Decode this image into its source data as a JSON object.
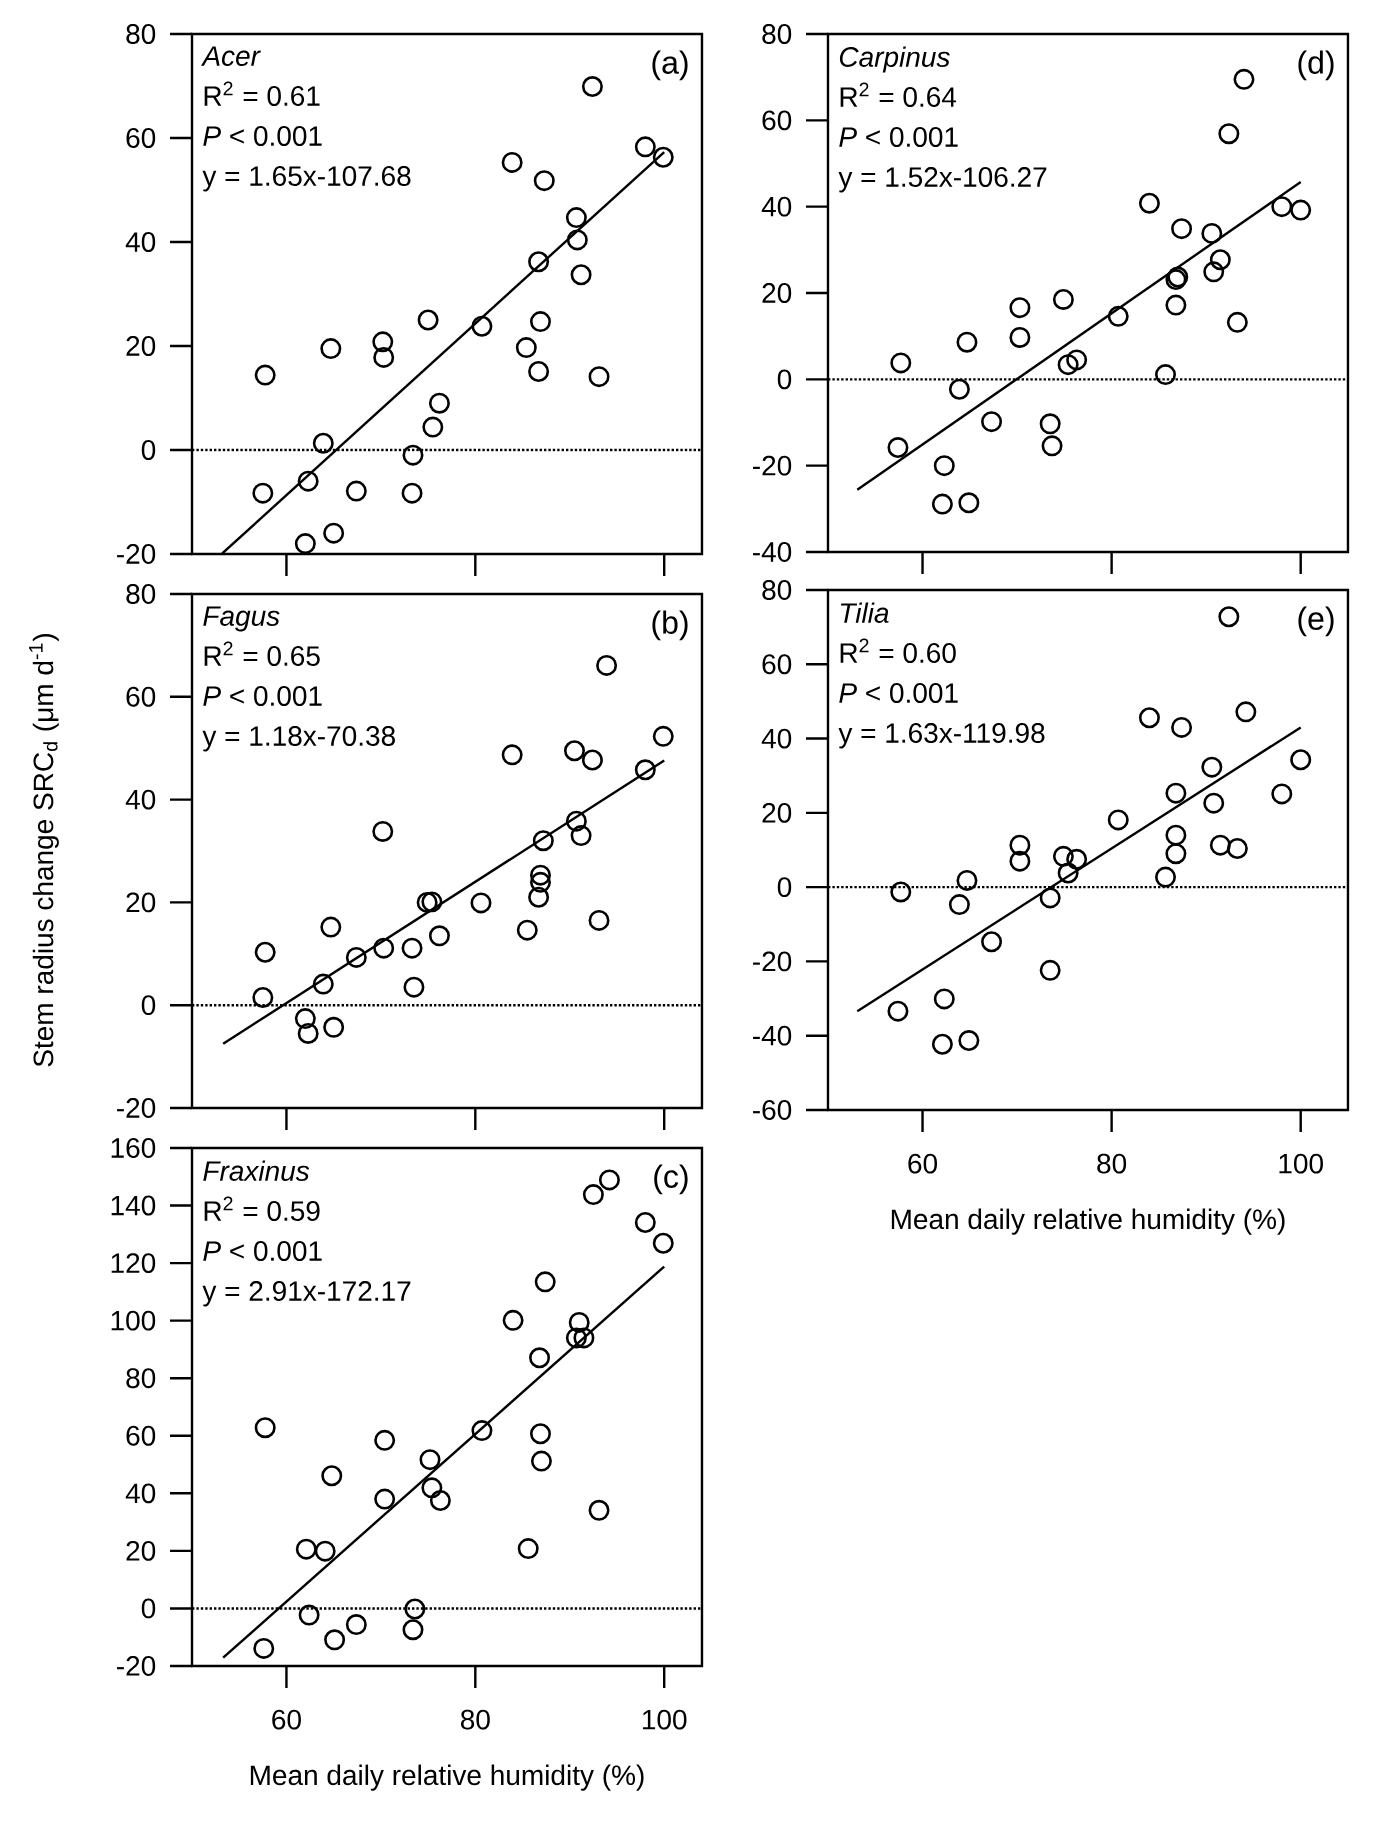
{
  "chart_data": [
    {
      "type": "scatter",
      "xlim": [
        50,
        104
      ],
      "ylim": [
        -20,
        80
      ],
      "xticks": [
        60,
        80,
        100
      ],
      "yticks": [
        -20,
        0,
        20,
        40,
        60,
        80
      ],
      "tick_labels": "y",
      "annotations": [
        "Acer",
        "R$^{2}$ = 0.61",
        "*P* < 0.001",
        "y = 1.65x-107.68",
        "(a)"
      ],
      "ref_lines": [
        {
          "axis": "y",
          "value": 0,
          "line_style": "dotted",
          "color": "#000000"
        }
      ],
      "series": [
        {
          "marker": "circle",
          "color": "#000000",
          "x": [
            57.75,
            57.5,
            62.3,
            63.9,
            64.7,
            62.0,
            65.0,
            67.4,
            70.2,
            70.3,
            73.4,
            73.3,
            75.0,
            75.5,
            76.2,
            80.7,
            83.9,
            85.4,
            86.7,
            86.9,
            86.7,
            87.3,
            90.7,
            90.8,
            91.2,
            92.4,
            93.1,
            98.0,
            99.9
          ],
          "values": [
            14.4,
            -8.3,
            -6.0,
            1.3,
            19.5,
            -18.0,
            -16.0,
            -7.9,
            20.8,
            17.8,
            -1.0,
            -8.3,
            25.0,
            4.4,
            9.0,
            23.8,
            55.3,
            19.7,
            36.2,
            24.7,
            15.1,
            51.8,
            44.7,
            40.4,
            33.7,
            69.9,
            14.1,
            58.3,
            56.3
          ]
        },
        {
          "type": "line",
          "color": "#000000",
          "x": [
            53.2,
            100
          ],
          "values": [
            -19.9,
            57.3
          ]
        }
      ]
    },
    {
      "type": "scatter",
      "xlim": [
        50,
        104
      ],
      "ylim": [
        -20,
        80
      ],
      "xticks": [
        60,
        80,
        100
      ],
      "yticks": [
        -20,
        0,
        20,
        40,
        60,
        80
      ],
      "tick_labels": "y",
      "ylabel": "Stem radius change SRC$_{d}$ (μm d$^{-1}$)",
      "annotations": [
        "Fagus",
        "R$^{2}$ = 0.65",
        "*P* < 0.001",
        "y = 1.18x-70.38",
        "(b)"
      ],
      "ref_lines": [
        {
          "axis": "y",
          "value": 0,
          "line_style": "dotted",
          "color": "#000000"
        }
      ],
      "series": [
        {
          "marker": "circle",
          "color": "#000000",
          "x": [
            57.75,
            57.5,
            64.7,
            63.9,
            62.0,
            62.3,
            65.0,
            67.4,
            70.2,
            70.3,
            73.3,
            73.5,
            74.9,
            75.4,
            76.2,
            80.6,
            83.9,
            85.5,
            86.7,
            86.9,
            86.9,
            87.2,
            90.5,
            90.7,
            91.2,
            92.4,
            93.1,
            93.9,
            98.0,
            99.9
          ],
          "values": [
            10.3,
            1.5,
            15.2,
            4.1,
            -2.6,
            -5.5,
            -4.3,
            9.3,
            33.8,
            11.1,
            11.1,
            3.5,
            20.0,
            20.1,
            13.5,
            19.9,
            48.7,
            14.6,
            21.0,
            23.9,
            25.3,
            32.0,
            49.5,
            35.8,
            33.0,
            47.7,
            16.5,
            66.1,
            45.8,
            52.3
          ]
        },
        {
          "type": "line",
          "color": "#000000",
          "x": [
            53.3,
            100
          ],
          "values": [
            -7.5,
            47.6
          ]
        }
      ]
    },
    {
      "type": "scatter",
      "xlim": [
        50,
        104
      ],
      "ylim": [
        -20,
        160
      ],
      "xticks": [
        60,
        80,
        100
      ],
      "yticks": [
        -20,
        0,
        20,
        40,
        60,
        80,
        100,
        120,
        140,
        160
      ],
      "xlabel": "Mean daily relative humidity (%)",
      "annotations": [
        "Fraxinus",
        "R$^{2}$ = 0.59",
        "*P* < 0.001",
        "y = 2.91x-172.17",
        "(c)"
      ],
      "ref_lines": [
        {
          "axis": "y",
          "value": 0,
          "line_style": "dotted",
          "color": "#000000"
        }
      ],
      "series": [
        {
          "marker": "circle",
          "color": "#000000",
          "x": [
            57.75,
            57.6,
            62.1,
            64.1,
            64.8,
            62.4,
            65.1,
            67.4,
            70.4,
            70.4,
            73.6,
            73.4,
            75.2,
            75.4,
            76.3,
            80.7,
            84.0,
            85.6,
            86.8,
            86.9,
            87.0,
            87.4,
            91.0,
            90.7,
            91.5,
            93.1,
            92.5,
            94.2,
            98.0,
            99.9
          ],
          "values": [
            62.8,
            -13.9,
            20.6,
            19.9,
            46.1,
            -2.3,
            -10.9,
            -5.6,
            58.4,
            38.0,
            -0.2,
            -7.4,
            51.7,
            41.9,
            37.5,
            61.8,
            100.1,
            20.8,
            87.1,
            60.7,
            51.2,
            113.5,
            99.4,
            94.0,
            94.0,
            34.1,
            143.8,
            148.9,
            134.1,
            126.9
          ]
        },
        {
          "type": "line",
          "color": "#000000",
          "x": [
            53.3,
            100
          ],
          "values": [
            -17.1,
            118.8
          ]
        }
      ]
    },
    {
      "type": "scatter",
      "xlim": [
        50,
        105
      ],
      "ylim": [
        -40,
        80
      ],
      "xticks": [
        60,
        80,
        100
      ],
      "yticks": [
        -40,
        -20,
        0,
        20,
        40,
        60,
        80
      ],
      "tick_labels": "y",
      "annotations": [
        "Carpinus",
        "R$^{2}$ = 0.64",
        "*P* < 0.001",
        "y = 1.52x-106.27",
        "(d)"
      ],
      "ref_lines": [
        {
          "axis": "y",
          "value": 0,
          "line_style": "dotted",
          "color": "#000000"
        }
      ],
      "series": [
        {
          "marker": "circle",
          "color": "#000000",
          "x": [
            57.7,
            57.4,
            62.3,
            62.1,
            64.9,
            64.7,
            63.9,
            67.3,
            70.3,
            70.3,
            74.9,
            73.5,
            73.7,
            75.4,
            76.3,
            80.7,
            84.0,
            85.7,
            86.8,
            86.8,
            87.0,
            87.4,
            90.6,
            90.8,
            91.5,
            93.3,
            92.4,
            94.0,
            98.0,
            100.0
          ],
          "values": [
            3.8,
            -15.8,
            -20.0,
            -28.9,
            -28.6,
            8.6,
            -2.3,
            -9.8,
            16.6,
            9.7,
            18.5,
            -10.3,
            -15.4,
            3.4,
            4.5,
            14.6,
            40.8,
            1.1,
            17.2,
            23.1,
            23.7,
            34.9,
            33.8,
            24.9,
            27.7,
            13.2,
            56.9,
            69.5,
            40.0,
            39.2
          ]
        },
        {
          "type": "line",
          "color": "#000000",
          "x": [
            53.1,
            100
          ],
          "values": [
            -25.6,
            45.7
          ]
        }
      ]
    },
    {
      "type": "scatter",
      "xlim": [
        50,
        105
      ],
      "ylim": [
        -60,
        80
      ],
      "xticks": [
        60,
        80,
        100
      ],
      "yticks": [
        -60,
        -40,
        -20,
        0,
        20,
        40,
        60,
        80
      ],
      "xlabel": "Mean daily relative humidity (%)",
      "annotations": [
        "Tilia",
        "R$^{2}$ = 0.60",
        "*P* < 0.001",
        "y = 1.63x-119.98",
        "(e)"
      ],
      "ref_lines": [
        {
          "axis": "y",
          "value": 0,
          "line_style": "dotted",
          "color": "#000000"
        }
      ],
      "series": [
        {
          "marker": "circle",
          "color": "#000000",
          "x": [
            57.7,
            57.4,
            62.3,
            62.1,
            64.9,
            64.7,
            63.9,
            67.3,
            70.3,
            70.3,
            73.5,
            73.5,
            74.9,
            75.4,
            76.3,
            80.7,
            84.0,
            85.7,
            86.8,
            86.8,
            86.8,
            87.4,
            90.6,
            90.8,
            91.5,
            93.3,
            92.4,
            94.2,
            98.0,
            100.0
          ],
          "values": [
            -1.3,
            -33.4,
            -30.1,
            -42.3,
            -41.3,
            1.8,
            -4.7,
            -14.7,
            11.3,
            7.0,
            -2.9,
            -22.4,
            8.3,
            3.8,
            7.5,
            18.1,
            45.6,
            2.7,
            25.3,
            14.0,
            9.0,
            43.0,
            32.3,
            22.6,
            11.3,
            10.4,
            72.8,
            47.2,
            25.1,
            34.3
          ]
        },
        {
          "type": "line",
          "color": "#000000",
          "x": [
            53.1,
            100
          ],
          "values": [
            -33.4,
            43.0
          ]
        }
      ]
    }
  ]
}
